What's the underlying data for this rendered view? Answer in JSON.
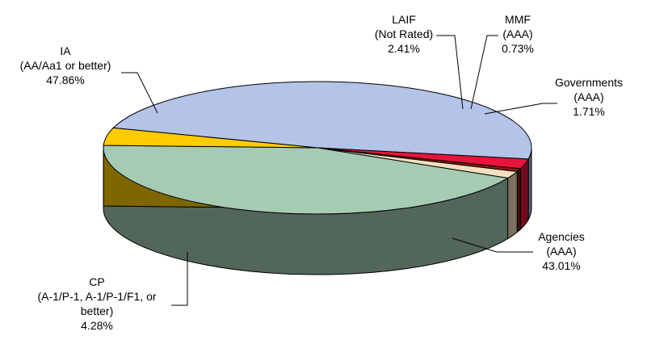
{
  "chart_data": {
    "type": "pie",
    "title": "",
    "three_d": true,
    "legend": "none",
    "slices": [
      {
        "name": "IA",
        "rating": "(AA/Aa1 or better)",
        "value": 47.86,
        "value_label": "47.86%",
        "color": "#B4C3E8"
      },
      {
        "name": "LAIF",
        "rating": "(Not Rated)",
        "value": 2.41,
        "value_label": "2.41%",
        "color": "#E8143C"
      },
      {
        "name": "MMF",
        "rating": "(AAA)",
        "value": 0.73,
        "value_label": "0.73%",
        "color": "#8B1A0E"
      },
      {
        "name": "Governments",
        "rating": "(AAA)",
        "value": 1.71,
        "value_label": "1.71%",
        "color": "#F2E0BE"
      },
      {
        "name": "Agencies",
        "rating": "(AAA)",
        "value": 43.01,
        "value_label": "43.01%",
        "color": "#A5CBB3"
      },
      {
        "name": "CP",
        "rating_lines": [
          "(A-1/P-1, A-1/P-1/F1, or",
          "better)"
        ],
        "value": 4.28,
        "value_label": "4.28%",
        "color": "#FFCC00"
      }
    ]
  }
}
